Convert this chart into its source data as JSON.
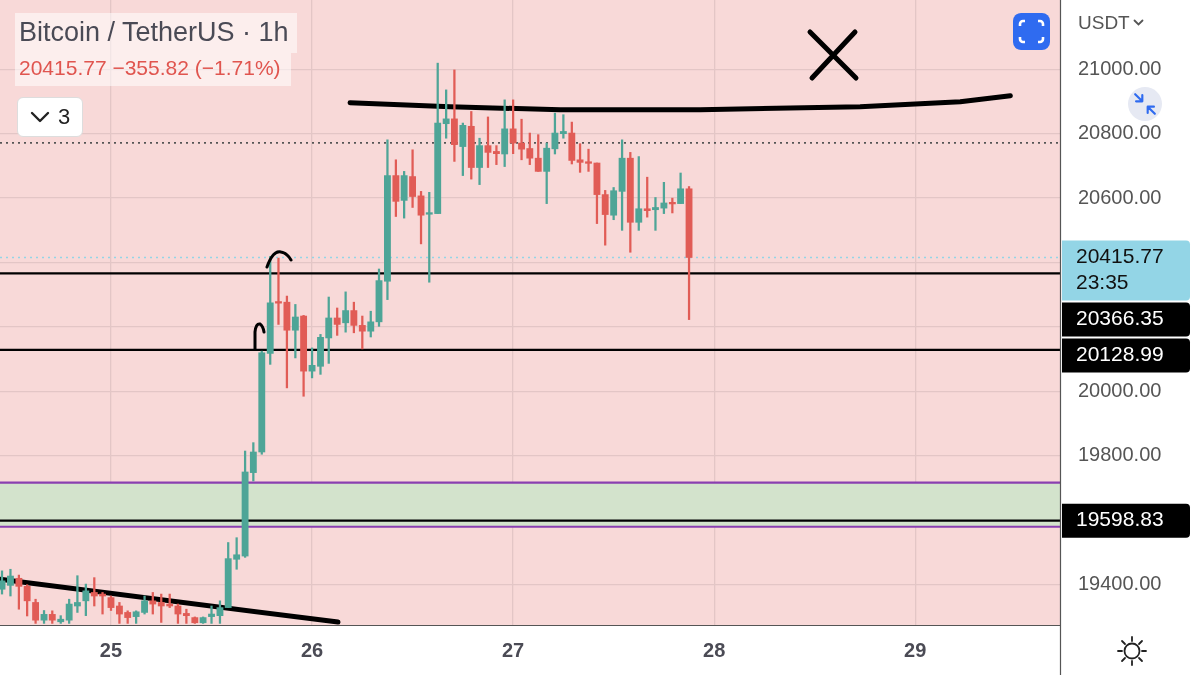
{
  "chart_data": {
    "type": "candlestick",
    "title": "Bitcoin / TetherUS · 1h",
    "subtitle": "20415.77  −355.82 (−1.71%)",
    "ylabel": "USDT",
    "annotations": [
      "3"
    ],
    "x": [
      24.458,
      24.5,
      24.542,
      24.583,
      24.625,
      24.667,
      24.708,
      24.75,
      24.792,
      24.833,
      24.875,
      24.917,
      24.958,
      25,
      25.042,
      25.083,
      25.125,
      25.167,
      25.208,
      25.25,
      25.292,
      25.333,
      25.375,
      25.417,
      25.458,
      25.5,
      25.542,
      25.583,
      25.625,
      25.667,
      25.708,
      25.75,
      25.792,
      25.833,
      25.875,
      25.917,
      25.958,
      26,
      26.042,
      26.083,
      26.125,
      26.167,
      26.208,
      26.25,
      26.292,
      26.333,
      26.375,
      26.417,
      26.458,
      26.5,
      26.542,
      26.583,
      26.625,
      26.667,
      26.708,
      26.75,
      26.792,
      26.833,
      26.875,
      26.917,
      26.958,
      27,
      27.042,
      27.083,
      27.125,
      27.167,
      27.208,
      27.25,
      27.292,
      27.333,
      27.375,
      27.417,
      27.458,
      27.5,
      27.542,
      27.583,
      27.625,
      27.667,
      27.708,
      27.75,
      27.792,
      27.833,
      27.875
    ],
    "ohlc": [
      [
        19386,
        19443,
        19371,
        19412
      ],
      [
        19398,
        19448,
        19365,
        19427
      ],
      [
        19420,
        19430,
        19324,
        19395
      ],
      [
        19395,
        19400,
        19303,
        19350
      ],
      [
        19345,
        19355,
        19280,
        19290
      ],
      [
        19290,
        19320,
        19280,
        19308
      ],
      [
        19308,
        19319,
        19280,
        19290
      ],
      [
        19285,
        19304,
        19280,
        19293
      ],
      [
        19290,
        19355,
        19280,
        19340
      ],
      [
        19334,
        19428,
        19314,
        19345
      ],
      [
        19350,
        19402,
        19304,
        19381
      ],
      [
        19376,
        19422,
        19334,
        19365
      ],
      [
        19371,
        19376,
        19309,
        19365
      ],
      [
        19360,
        19365,
        19320,
        19329
      ],
      [
        19334,
        19345,
        19280,
        19309
      ],
      [
        19314,
        19319,
        19280,
        19298
      ],
      [
        19301,
        19319,
        19280,
        19316
      ],
      [
        19314,
        19365,
        19309,
        19350
      ],
      [
        19350,
        19376,
        19309,
        19340
      ],
      [
        19345,
        19371,
        19283,
        19334
      ],
      [
        19340,
        19371,
        19329,
        19334
      ],
      [
        19334,
        19340,
        19280,
        19309
      ],
      [
        19311,
        19324,
        19280,
        19304
      ],
      [
        19298,
        19300,
        19280,
        19282
      ],
      [
        19282,
        19300,
        19280,
        19298
      ],
      [
        19301,
        19334,
        19280,
        19309
      ],
      [
        19304,
        19350,
        19280,
        19329
      ],
      [
        19329,
        19531,
        19329,
        19481
      ],
      [
        19479,
        19546,
        19448,
        19493
      ],
      [
        19489,
        19815,
        19485,
        19750
      ],
      [
        19748,
        19841,
        19722,
        19812
      ],
      [
        19812,
        20125,
        19805,
        20120
      ],
      [
        20118,
        20419,
        20084,
        20275
      ],
      [
        20275,
        20414,
        20208,
        20274
      ],
      [
        20277,
        20296,
        20011,
        20190
      ],
      [
        20190,
        20270,
        20104,
        20231
      ],
      [
        20234,
        20236,
        19985,
        20063
      ],
      [
        20063,
        20135,
        20042,
        20081
      ],
      [
        20078,
        20177,
        20053,
        20168
      ],
      [
        20166,
        20293,
        20087,
        20228
      ],
      [
        20228,
        20259,
        20174,
        20208
      ],
      [
        20213,
        20309,
        20184,
        20251
      ],
      [
        20251,
        20277,
        20182,
        20205
      ],
      [
        20205,
        20234,
        20132,
        20187
      ],
      [
        20187,
        20249,
        20169,
        20216
      ],
      [
        20216,
        20380,
        20202,
        20344
      ],
      [
        20342,
        20781,
        20285,
        20670
      ],
      [
        20670,
        20719,
        20543,
        20590
      ],
      [
        20593,
        20683,
        20538,
        20670
      ],
      [
        20667,
        20750,
        20571,
        20605
      ],
      [
        20607,
        20621,
        20458,
        20547
      ],
      [
        20550,
        20618,
        20339,
        20552
      ],
      [
        20552,
        21019,
        20552,
        20833
      ],
      [
        20831,
        20936,
        20786,
        20846
      ],
      [
        20846,
        20998,
        20714,
        20766
      ],
      [
        20760,
        20833,
        20670,
        20826
      ],
      [
        20823,
        20869,
        20659,
        20695
      ],
      [
        20695,
        20786,
        20642,
        20763
      ],
      [
        20763,
        20852,
        20695,
        20742
      ],
      [
        20745,
        20763,
        20704,
        20738
      ],
      [
        20737,
        20905,
        20698,
        20815
      ],
      [
        20815,
        20905,
        20738,
        20771
      ],
      [
        20771,
        20845,
        20719,
        20752
      ],
      [
        20754,
        20802,
        20704,
        20724
      ],
      [
        20724,
        20797,
        20683,
        20683
      ],
      [
        20683,
        20771,
        20583,
        20755
      ],
      [
        20753,
        20864,
        20737,
        20802
      ],
      [
        20800,
        20859,
        20786,
        20807
      ],
      [
        20802,
        20836,
        20706,
        20717
      ],
      [
        20719,
        20769,
        20680,
        20711
      ],
      [
        20711,
        20752,
        20683,
        20708
      ],
      [
        20709,
        20709,
        20521,
        20611
      ],
      [
        20611,
        20624,
        20454,
        20549
      ],
      [
        20547,
        20633,
        20533,
        20623
      ],
      [
        20621,
        20781,
        20500,
        20724
      ],
      [
        20724,
        20742,
        20432,
        20525
      ],
      [
        20525,
        20729,
        20500,
        20567
      ],
      [
        20567,
        20665,
        20541,
        20561
      ],
      [
        20564,
        20602,
        20500,
        20571
      ],
      [
        20569,
        20649,
        20552,
        20585
      ],
      [
        20585,
        20600,
        20554,
        20582
      ],
      [
        20583,
        20678,
        20583,
        20629
      ],
      [
        20629,
        20636,
        20223,
        20415.77
      ]
    ],
    "colors": [
      "#4ea597",
      "#4ea597",
      "#e15c56",
      "#e15c56",
      "#e15c56",
      "#4ea597",
      "#e15c56",
      "#4ea597",
      "#4ea597",
      "#4ea597",
      "#4ea597",
      "#e15c56",
      "#e15c56",
      "#e15c56",
      "#e15c56",
      "#e15c56",
      "#4ea597",
      "#4ea597",
      "#e15c56",
      "#e15c56",
      "#e15c56",
      "#e15c56",
      "#e15c56",
      "#e15c56",
      "#4ea597",
      "#4ea597",
      "#4ea597",
      "#4ea597",
      "#4ea597",
      "#4ea597",
      "#4ea597",
      "#4ea597",
      "#4ea597",
      "#e15c56",
      "#e15c56",
      "#4ea597",
      "#e15c56",
      "#4ea597",
      "#4ea597",
      "#4ea597",
      "#e15c56",
      "#4ea597",
      "#e15c56",
      "#e15c56",
      "#4ea597",
      "#4ea597",
      "#4ea597",
      "#e15c56",
      "#4ea597",
      "#e15c56",
      "#e15c56",
      "#4ea597",
      "#4ea597",
      "#4ea597",
      "#e15c56",
      "#4ea597",
      "#e15c56",
      "#4ea597",
      "#e15c56",
      "#e15c56",
      "#4ea597",
      "#e15c56",
      "#e15c56",
      "#e15c56",
      "#e15c56",
      "#4ea597",
      "#4ea597",
      "#4ea597",
      "#e15c56",
      "#e15c56",
      "#e15c56",
      "#e15c56",
      "#e15c56",
      "#4ea597",
      "#4ea597",
      "#e15c56",
      "#4ea597",
      "#e15c56",
      "#4ea597",
      "#4ea597",
      "#e15c56",
      "#4ea597",
      "#e15c56"
    ],
    "series": [
      {
        "type": "line",
        "color": "#000000",
        "x": [
          26.189,
          26.687,
          27.234,
          27.93,
          28.726,
          29.224,
          29.473
        ],
        "values": [
          20896,
          20884,
          20874,
          20874,
          20884,
          20899,
          20918
        ]
      },
      {
        "type": "line",
        "color": "#000000",
        "x": [
          24.448,
          26.129
        ],
        "values": [
          19417,
          19284
        ]
      }
    ],
    "xlim": [
      24.448,
      29.72
    ],
    "xticks": [
      25,
      26,
      27,
      28,
      29
    ],
    "ylim": [
      19275,
      21215
    ],
    "yticks": [
      {
        "value": 19400,
        "label": "19400.00"
      },
      {
        "value": 19600,
        "label": null
      },
      {
        "value": 19800,
        "label": "19800.00"
      },
      {
        "value": 20000,
        "label": "20000.00"
      },
      {
        "value": 20200,
        "label": null
      },
      {
        "value": 20400,
        "label": null
      },
      {
        "value": 20600,
        "label": "20600.00"
      },
      {
        "value": 20800,
        "label": "20800.00"
      },
      {
        "value": 21000,
        "label": "21000.00"
      }
    ],
    "grid": true,
    "bands": [
      {
        "axis": "y",
        "from": 19580,
        "to": 19717,
        "color": "#d3e3cc"
      }
    ],
    "ref_lines": [
      {
        "axis": "y",
        "value": 20771.59,
        "line_style": "dotted",
        "color": "#555555"
      },
      {
        "axis": "y",
        "value": 20415.77,
        "label": "20415.77\n23:35",
        "line_style": "dotted",
        "color": "#93d5e6"
      },
      {
        "axis": "y",
        "value": 20366.35,
        "label": "20366.35",
        "line_style": "solid",
        "color": "#000000"
      },
      {
        "axis": "y",
        "value": 20128.99,
        "label": "20128.99",
        "line_style": "solid",
        "color": "#000000"
      },
      {
        "axis": "y",
        "value": 19717,
        "line_style": "solid",
        "color": "#8a3fb0"
      },
      {
        "axis": "y",
        "value": 19598.83,
        "label": "19598.83",
        "line_style": "solid",
        "color": "#000000"
      },
      {
        "axis": "y",
        "value": 19580,
        "line_style": "solid",
        "color": "#8a3fb0"
      }
    ]
  }
}
